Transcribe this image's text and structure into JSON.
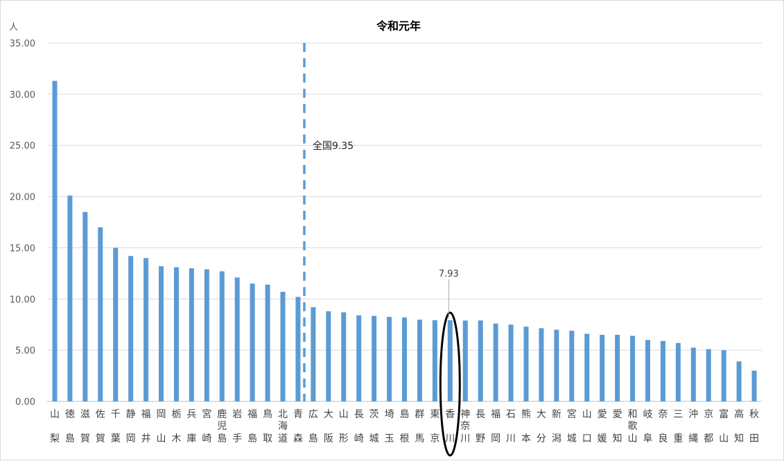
{
  "chart_data": {
    "type": "bar",
    "title": "令和元年",
    "unit_label": "人",
    "ylim": [
      0,
      35
    ],
    "y_ticks": [
      "0.00",
      "5.00",
      "10.00",
      "15.00",
      "20.00",
      "25.00",
      "30.00",
      "35.00"
    ],
    "grid": true,
    "bar_color": "#5b9bd5",
    "categories": [
      [
        "山",
        "梨"
      ],
      [
        "徳",
        "島"
      ],
      [
        "滋",
        "賀"
      ],
      [
        "佐",
        "賀"
      ],
      [
        "千",
        "葉"
      ],
      [
        "静",
        "岡"
      ],
      [
        "福",
        "井"
      ],
      [
        "岡",
        "山"
      ],
      [
        "栃",
        "木"
      ],
      [
        "兵",
        "庫"
      ],
      [
        "宮",
        "崎"
      ],
      [
        "鹿",
        "児",
        "島"
      ],
      [
        "岩",
        "手"
      ],
      [
        "福",
        "島"
      ],
      [
        "鳥",
        "取"
      ],
      [
        "北",
        "海",
        "道"
      ],
      [
        "青",
        "森"
      ],
      [
        "広",
        "島"
      ],
      [
        "大",
        "阪"
      ],
      [
        "山",
        "形"
      ],
      [
        "長",
        "崎"
      ],
      [
        "茨",
        "城"
      ],
      [
        "埼",
        "玉"
      ],
      [
        "島",
        "根"
      ],
      [
        "群",
        "馬"
      ],
      [
        "東",
        "京"
      ],
      [
        "香",
        "川"
      ],
      [
        "神",
        "奈",
        "川"
      ],
      [
        "長",
        "野"
      ],
      [
        "福",
        "岡"
      ],
      [
        "石",
        "川"
      ],
      [
        "熊",
        "本"
      ],
      [
        "大",
        "分"
      ],
      [
        "新",
        "潟"
      ],
      [
        "宮",
        "城"
      ],
      [
        "山",
        "口"
      ],
      [
        "愛",
        "媛"
      ],
      [
        "愛",
        "知"
      ],
      [
        "和",
        "歌",
        "山"
      ],
      [
        "岐",
        "阜"
      ],
      [
        "奈",
        "良"
      ],
      [
        "三",
        "重"
      ],
      [
        "沖",
        "縄"
      ],
      [
        "京",
        "都"
      ],
      [
        "富",
        "山"
      ],
      [
        "高",
        "知"
      ],
      [
        "秋",
        "田"
      ]
    ],
    "values": [
      31.3,
      20.1,
      18.5,
      17.0,
      15.0,
      14.2,
      14.0,
      13.2,
      13.1,
      13.0,
      12.9,
      12.7,
      12.1,
      11.5,
      11.4,
      10.7,
      10.2,
      9.2,
      8.8,
      8.7,
      8.4,
      8.35,
      8.25,
      8.2,
      7.98,
      7.93,
      7.93,
      7.9,
      7.9,
      7.6,
      7.5,
      7.3,
      7.15,
      7.0,
      6.9,
      6.6,
      6.5,
      6.5,
      6.4,
      6.0,
      5.9,
      5.7,
      5.25,
      5.1,
      5.0,
      3.9,
      3.0
    ],
    "reference_line": {
      "label": "全国9.35",
      "value": 9.35
    },
    "highlight": {
      "category_index": 26,
      "label": "7.93"
    }
  }
}
